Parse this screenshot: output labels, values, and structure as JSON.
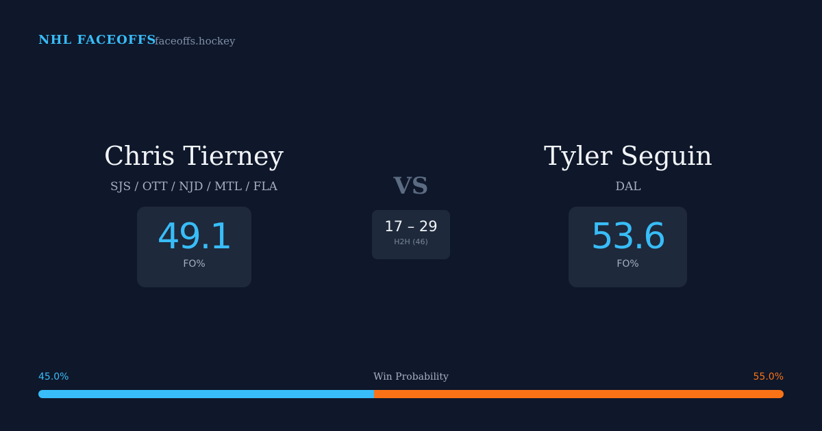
{
  "header": {
    "brand": "NHL FACEOFFS",
    "site": "faceoffs.hockey"
  },
  "players": [
    {
      "name": "Chris Tierney",
      "teams": "SJS / OTT / NJD / MTL / FLA",
      "fo_pct": 49.1,
      "fo_label": "FO%"
    },
    {
      "name": "Tyler Seguin",
      "teams": "DAL",
      "fo_pct": 53.6,
      "fo_label": "FO%"
    }
  ],
  "vs": "VS",
  "h2h": {
    "score": "17 – 29",
    "label": "H2H (46)"
  },
  "win_probability": {
    "label": "Win Probability",
    "left": {
      "value": 45,
      "label": "45.0%"
    },
    "right": {
      "value": 55,
      "label": "55.0%"
    }
  }
}
